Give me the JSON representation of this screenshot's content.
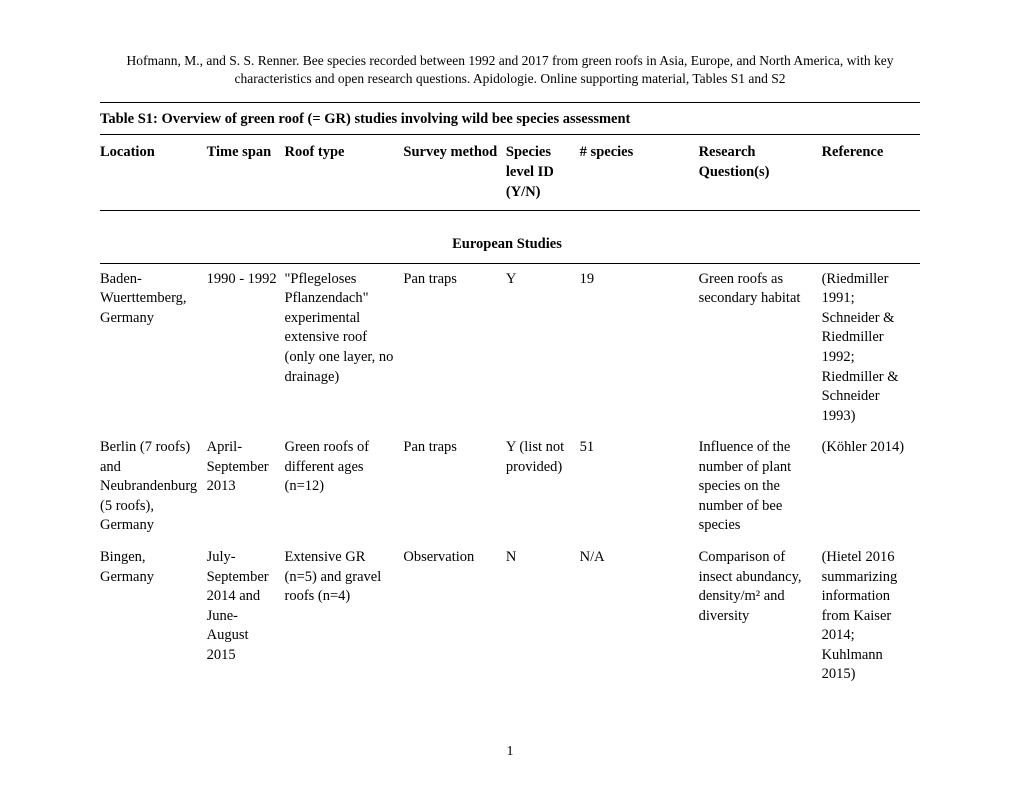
{
  "citation": "Hofmann, M., and S. S. Renner. Bee species recorded between 1992 and 2017 from green roofs in Asia, Europe, and North America, with key characteristics and open research questions. Apidologie. Online supporting material, Tables S1 and S2",
  "table_title": "Table S1: Overview of green roof (= GR) studies involving wild bee species assessment",
  "columns": {
    "location": "Location",
    "time": "Time span",
    "roof": "Roof type",
    "survey": "Survey method",
    "speciesid": "Species level ID (Y/N)",
    "nspecies": "# species",
    "rq": "Research Question(s)",
    "ref": "Reference"
  },
  "section_heading": "European Studies",
  "rows": [
    {
      "location": "Baden-Wuerttemberg, Germany",
      "time": "1990 - 1992",
      "roof": "\"Pflegeloses Pflanzendach\" experimental extensive roof (only one layer, no drainage)",
      "survey": "Pan traps",
      "speciesid": "Y",
      "nspecies": "19",
      "rq": "Green roofs as secondary habitat",
      "ref": "(Riedmiller 1991; Schneider & Riedmiller 1992; Riedmiller & Schneider 1993)"
    },
    {
      "location": "Berlin (7 roofs) and Neubrandenburg (5 roofs), Germany",
      "time": "April-September 2013",
      "roof": "Green roofs of different ages (n=12)",
      "survey": "Pan traps",
      "speciesid": "Y (list not provided)",
      "nspecies": "51",
      "rq": "Influence of the number of plant species on the number of bee species",
      "ref": "(Köhler 2014)"
    },
    {
      "location": "Bingen, Germany",
      "time": "July-September 2014 and June-August 2015",
      "roof": "Extensive GR (n=5) and gravel roofs (n=4)",
      "survey": "Observation",
      "speciesid": "N",
      "nspecies": "N/A",
      "rq": "Comparison of insect abundancy, density/m² and diversity",
      "ref": "(Hietel 2016 summarizing information from Kaiser 2014; Kuhlmann 2015)"
    }
  ],
  "page_number": "1"
}
